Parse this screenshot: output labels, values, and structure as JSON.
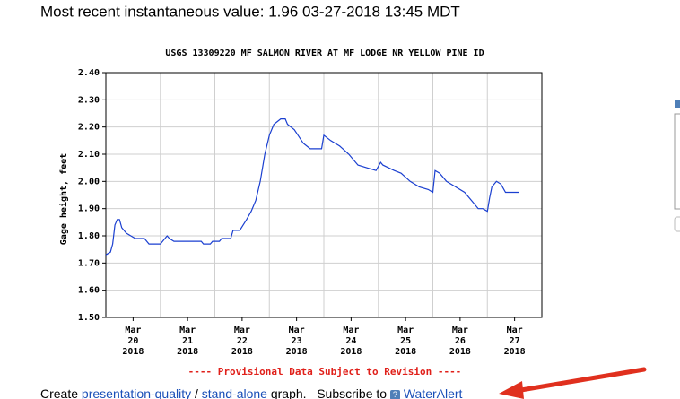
{
  "header": {
    "latest": "Most recent instantaneous value: 1.96 03-27-2018   13:45 MDT"
  },
  "chart_data": {
    "type": "line",
    "title": "USGS 13309220 MF SALMON RIVER AT MF LODGE NR YELLOW PINE ID",
    "ylabel": "Gage height, feet",
    "note": "---- Provisional Data Subject to Revision ----",
    "xlim": [
      "2018-03-20T00:00",
      "2018-03-28T00:00"
    ],
    "xticks": [
      {
        "value": "2018-03-20T12:00",
        "label": "Mar 20 2018"
      },
      {
        "value": "2018-03-21T12:00",
        "label": "Mar 21 2018"
      },
      {
        "value": "2018-03-22T12:00",
        "label": "Mar 22 2018"
      },
      {
        "value": "2018-03-23T12:00",
        "label": "Mar 23 2018"
      },
      {
        "value": "2018-03-24T12:00",
        "label": "Mar 24 2018"
      },
      {
        "value": "2018-03-25T12:00",
        "label": "Mar 25 2018"
      },
      {
        "value": "2018-03-26T12:00",
        "label": "Mar 26 2018"
      },
      {
        "value": "2018-03-27T12:00",
        "label": "Mar 27 2018"
      }
    ],
    "ylim": [
      1.5,
      2.4
    ],
    "yticks": [
      {
        "value": 1.5,
        "label": "1.50"
      },
      {
        "value": 1.6,
        "label": "1.60"
      },
      {
        "value": 1.7,
        "label": "1.70"
      },
      {
        "value": 1.8,
        "label": "1.80"
      },
      {
        "value": 1.9,
        "label": "1.90"
      },
      {
        "value": 2.0,
        "label": "2.00"
      },
      {
        "value": 2.1,
        "label": "2.10"
      },
      {
        "value": 2.2,
        "label": "2.20"
      },
      {
        "value": 2.3,
        "label": "2.30"
      },
      {
        "value": 2.4,
        "label": "2.40"
      }
    ],
    "grid": true,
    "color": "#1a3fd0",
    "x": [
      "2018-03-20T00:00",
      "2018-03-20T02:00",
      "2018-03-20T03:00",
      "2018-03-20T04:00",
      "2018-03-20T05:00",
      "2018-03-20T06:00",
      "2018-03-20T07:00",
      "2018-03-20T09:00",
      "2018-03-20T11:00",
      "2018-03-20T13:00",
      "2018-03-20T17:00",
      "2018-03-20T19:00",
      "2018-03-21T00:00",
      "2018-03-21T01:00",
      "2018-03-21T03:00",
      "2018-03-21T04:00",
      "2018-03-21T06:00",
      "2018-03-21T18:00",
      "2018-03-21T19:00",
      "2018-03-21T22:00",
      "2018-03-21T23:00",
      "2018-03-22T02:00",
      "2018-03-22T03:00",
      "2018-03-22T07:00",
      "2018-03-22T08:00",
      "2018-03-22T11:00",
      "2018-03-22T14:00",
      "2018-03-22T16:00",
      "2018-03-22T18:00",
      "2018-03-22T20:00",
      "2018-03-22T22:00",
      "2018-03-23T00:00",
      "2018-03-23T02:00",
      "2018-03-23T05:00",
      "2018-03-23T07:00",
      "2018-03-23T08:00",
      "2018-03-23T11:00",
      "2018-03-23T15:00",
      "2018-03-23T18:00",
      "2018-03-23T23:00",
      "2018-03-24T00:00",
      "2018-03-24T03:00",
      "2018-03-24T07:00",
      "2018-03-24T11:00",
      "2018-03-24T15:00",
      "2018-03-24T19:00",
      "2018-03-24T23:00",
      "2018-03-25T01:00",
      "2018-03-25T02:00",
      "2018-03-25T07:00",
      "2018-03-25T10:00",
      "2018-03-25T14:00",
      "2018-03-25T18:00",
      "2018-03-25T22:00",
      "2018-03-26T00:00",
      "2018-03-26T01:00",
      "2018-03-26T03:00",
      "2018-03-26T06:00",
      "2018-03-26T10:00",
      "2018-03-26T14:00",
      "2018-03-26T18:00",
      "2018-03-26T20:00",
      "2018-03-26T22:00",
      "2018-03-27T00:00",
      "2018-03-27T01:00",
      "2018-03-27T02:00",
      "2018-03-27T04:00",
      "2018-03-27T06:00",
      "2018-03-27T08:00",
      "2018-03-27T13:45"
    ],
    "values": [
      1.73,
      1.74,
      1.77,
      1.84,
      1.86,
      1.86,
      1.83,
      1.81,
      1.8,
      1.79,
      1.79,
      1.77,
      1.77,
      1.78,
      1.8,
      1.79,
      1.78,
      1.78,
      1.77,
      1.77,
      1.78,
      1.78,
      1.79,
      1.79,
      1.82,
      1.82,
      1.86,
      1.89,
      1.93,
      2.0,
      2.1,
      2.17,
      2.21,
      2.23,
      2.23,
      2.21,
      2.19,
      2.14,
      2.12,
      2.12,
      2.17,
      2.15,
      2.13,
      2.1,
      2.06,
      2.05,
      2.04,
      2.07,
      2.06,
      2.04,
      2.03,
      2.0,
      1.98,
      1.97,
      1.96,
      2.04,
      2.03,
      2.0,
      1.98,
      1.96,
      1.92,
      1.9,
      1.9,
      1.89,
      1.94,
      1.98,
      2.0,
      1.99,
      1.96,
      1.96
    ]
  },
  "footer": {
    "create": "Create",
    "link1": "presentation-quality",
    "sep": "/",
    "link2": "stand-alone",
    "graph": "graph.",
    "subscribe": "Subscribe to",
    "help": "?",
    "alert": "WaterAlert"
  }
}
